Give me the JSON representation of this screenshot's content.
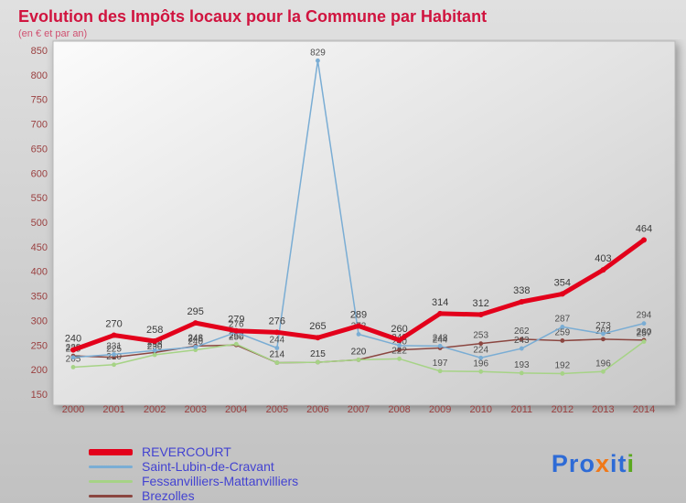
{
  "title": "Evolution des Impôts locaux pour la Commune par Habitant",
  "subtitle": "(en € et par an)",
  "colors": {
    "title": "#d0143f",
    "axis_labels": "#9a4040",
    "legend_text": "#4343d1",
    "background": "#cfcfcf"
  },
  "logo": {
    "name": "Proxiti",
    "segments": [
      {
        "text": "Pro",
        "color": "#2e6bd6"
      },
      {
        "text": "x",
        "color": "#f07818"
      },
      {
        "text": "i",
        "color": "#2e6bd6"
      },
      {
        "text": "t",
        "color": "#2e6bd6"
      },
      {
        "text": "i",
        "color": "#5aa81e"
      }
    ]
  },
  "chart_data": {
    "type": "line",
    "x": [
      2000,
      2001,
      2002,
      2003,
      2004,
      2005,
      2006,
      2007,
      2008,
      2009,
      2010,
      2011,
      2012,
      2013,
      2014
    ],
    "ylim": [
      150,
      850
    ],
    "ytick_step": 50,
    "grid": false,
    "legend_position": "bottom-left",
    "ylabel": "",
    "xlabel": "",
    "series": [
      {
        "name": "REVERCOURT",
        "color": "#e3001b",
        "width": 5,
        "values": [
          240,
          270,
          258,
          295,
          279,
          276,
          265,
          289,
          260,
          314,
          312,
          338,
          354,
          403,
          464
        ]
      },
      {
        "name": "Saint-Lubin-de-Cravant",
        "color": "#7aadd4",
        "width": 1.5,
        "values": [
          225,
          231,
          239,
          246,
          276,
          244,
          829,
          272,
          249,
          248,
          224,
          243,
          287,
          273,
          294
        ]
      },
      {
        "name": "Fessanvilliers-Mattanvilliers",
        "color": "#a6d386",
        "width": 1.5,
        "values": [
          205,
          210,
          230,
          240,
          252,
          214,
          215,
          220,
          222,
          197,
          196,
          193,
          192,
          196,
          257
        ]
      },
      {
        "name": "Brezolles",
        "color": "#8b4640",
        "width": 1.5,
        "values": [
          228,
          225,
          235,
          248,
          250,
          214,
          215,
          220,
          240,
          244,
          253,
          262,
          259,
          262,
          260
        ]
      }
    ]
  }
}
